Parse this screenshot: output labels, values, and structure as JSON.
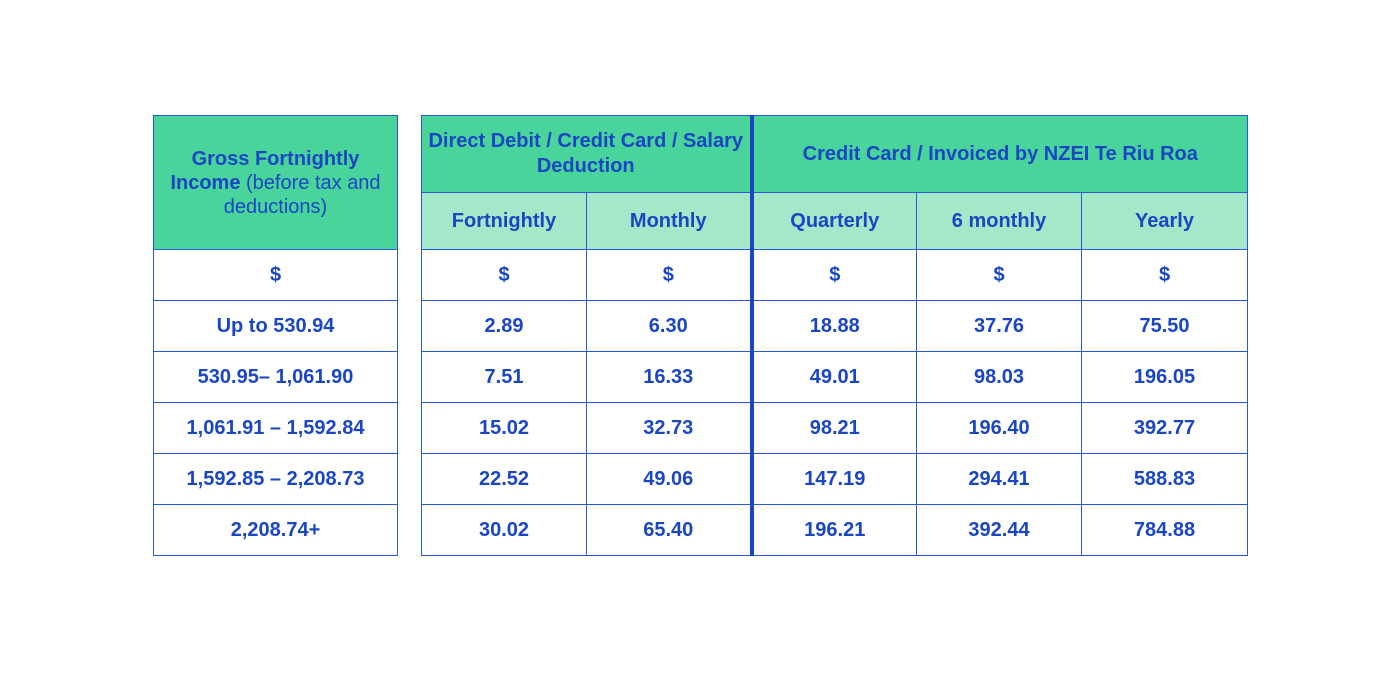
{
  "income_table": {
    "header_bold": "Gross Fortnightly Income",
    "header_normal": " (before tax and deductions)",
    "currency": "$",
    "rows": [
      "Up to 530.94",
      "530.95– 1,061.90",
      "1,061.91 – 1,592.84",
      "1,592.85 – 2,208.73",
      "2,208.74+"
    ]
  },
  "rates_table": {
    "group1": "Direct Debit / Credit Card / Salary Deduction",
    "group2": "Credit Card / Invoiced by NZEI Te Riu Roa",
    "columns": [
      "Fortnightly",
      "Monthly",
      "Quarterly",
      "6 monthly",
      "Yearly"
    ],
    "currency": [
      "$",
      "$",
      "$",
      "$",
      "$"
    ],
    "rows": [
      [
        "2.89",
        "6.30",
        "18.88",
        "37.76",
        "75.50"
      ],
      [
        "7.51",
        "16.33",
        "49.01",
        "98.03",
        "196.05"
      ],
      [
        "15.02",
        "32.73",
        "98.21",
        "196.40",
        "392.77"
      ],
      [
        "22.52",
        "49.06",
        "147.19",
        "294.41",
        "588.83"
      ],
      [
        "30.02",
        "65.40",
        "196.21",
        "392.44",
        "784.88"
      ]
    ]
  },
  "colors": {
    "header_dark": "#48d49a",
    "header_light": "#a3e8c9",
    "text_blue": "#1a46c4",
    "border_blue": "#2a5bd7"
  }
}
